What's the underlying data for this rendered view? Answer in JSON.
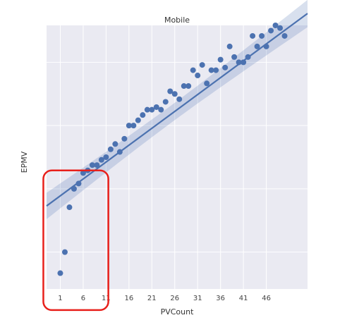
{
  "chart_data": {
    "type": "scatter",
    "title": "Mobile",
    "xlabel": "PVCount",
    "ylabel": "EPMV",
    "xlim": [
      -2,
      55
    ],
    "ylim": [
      0,
      10
    ],
    "xticks": [
      1,
      6,
      11,
      16,
      21,
      26,
      31,
      36,
      41,
      46
    ],
    "ytick_values": [
      1.4,
      3.8,
      6.2,
      8.6,
      11.0
    ],
    "ytick_labels_visible": false,
    "grid": true,
    "background_color": "#eaeaf2",
    "series": [
      {
        "kind": "points",
        "color": "#4c72b0",
        "x": [
          1,
          2,
          3,
          4,
          5,
          6,
          7,
          8,
          9,
          10,
          11,
          12,
          13,
          14,
          15,
          16,
          17,
          18,
          19,
          20,
          21,
          22,
          23,
          24,
          25,
          26,
          27,
          28,
          29,
          30,
          31,
          32,
          33,
          34,
          35,
          36,
          37,
          38,
          39,
          40,
          41,
          42,
          43,
          44,
          45,
          46,
          47,
          48,
          49,
          50
        ],
        "y": [
          0.6,
          1.4,
          3.1,
          3.8,
          4.0,
          4.4,
          4.5,
          4.7,
          4.7,
          4.9,
          5.0,
          5.3,
          5.5,
          5.2,
          5.7,
          6.2,
          6.2,
          6.4,
          6.6,
          6.8,
          6.8,
          6.9,
          6.8,
          7.1,
          7.5,
          7.4,
          7.2,
          7.7,
          7.7,
          8.3,
          8.1,
          8.5,
          7.8,
          8.3,
          8.3,
          8.7,
          8.4,
          9.2,
          8.8,
          8.6,
          8.6,
          8.8,
          9.6,
          9.2,
          9.6,
          9.2,
          9.8,
          10.0,
          9.9,
          9.6
        ]
      },
      {
        "kind": "regression_line",
        "color": "#4c72b0",
        "x": [
          -2,
          55
        ],
        "y": [
          3.15,
          10.45
        ],
        "ci_band": true
      }
    ]
  },
  "annotation": {
    "type": "rounded-rectangle",
    "color": "#e8201b",
    "x_range": [
      -2.7,
      11.5
    ],
    "y_range": [
      -0.8,
      4.5
    ]
  }
}
